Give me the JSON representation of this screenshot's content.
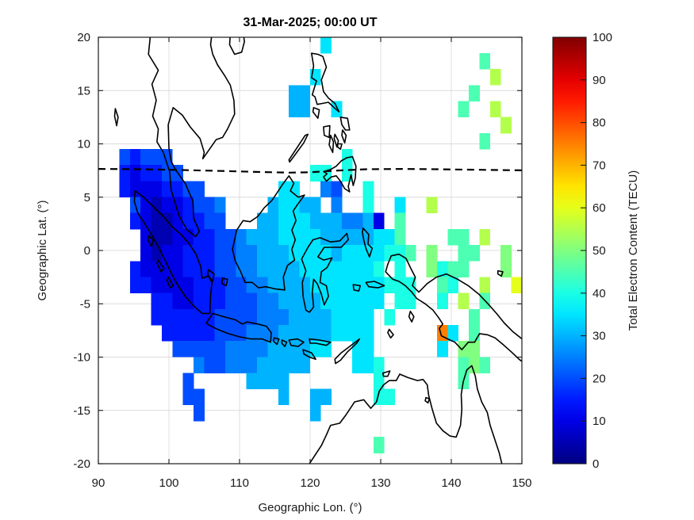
{
  "figure": {
    "title": "31-Mar-2025; 00:00 UT",
    "background": "#ffffff"
  },
  "axes": {
    "xlabel": "Geographic Lon. (°)",
    "ylabel": "Geographic Lat. (°)",
    "xlim": [
      90,
      150
    ],
    "ylim": [
      -20,
      20
    ],
    "xticks": [
      90,
      100,
      110,
      120,
      130,
      140,
      150
    ],
    "yticks": [
      -20,
      -15,
      -10,
      -5,
      0,
      5,
      10,
      15,
      20
    ],
    "grid": true,
    "axis_color": "#1a1a1a",
    "grid_color": "#dcdcdc"
  },
  "colorbar": {
    "label": "Total Electron Content (TECU)",
    "lim": [
      0,
      100
    ],
    "ticks": [
      0,
      10,
      20,
      30,
      40,
      50,
      60,
      70,
      80,
      90,
      100
    ],
    "colormap": "jet"
  },
  "chart_data": {
    "type": "heatmap",
    "title": "31-Mar-2025; 00:00 UT",
    "xlabel": "Geographic Lon. (°)",
    "ylabel": "Geographic Lat. (°)",
    "value_label": "Total Electron Content (TECU)",
    "xlim": [
      90,
      150
    ],
    "ylim": [
      -20,
      20
    ],
    "zlim": [
      0,
      100
    ],
    "cell_size_deg": 1.5,
    "grid_origin": {
      "lon": 90,
      "lat": 20
    },
    "no_data_char": ".",
    "value_map": {
      "a": 5,
      "b": 10,
      "c": 15,
      "d": 20,
      "e": 25,
      "f": 30,
      "g": 35,
      "h": 40,
      "i": 45,
      "j": 50,
      "k": 55,
      "l": 60,
      "m": 65,
      "n": 70,
      "o": 75,
      "p": 80
    },
    "rows": [
      ".....................g..................",
      "....................................i...",
      "....................g................k..",
      "..................ff...............i....",
      "..................ff..g...........i..k..",
      "......................................k.",
      "....................................i...",
      "..dcddd................h................",
      "..cbccdd............hh.h................",
      "..cbbbccdd.......gg..ed..h..............",
      "...dbabbcdde....fggff.e..h..g..k........",
      "...cbaabccdd...ffgggfffeefb.i...........",
      "....baabbccddefffggggfffffggi....ii.k...",
      "....babbcccddeefffggggfgggghhi.j..ii..j.",
      "...cbbbbcccddeeffffgggggggh.h..jhii...j.",
      "...ccbbbbcccddeeffffggggggghhh..ih..k..l",
      ".....ccbbcccdddeeffffgggggg.hh..h.k.i...",
      ".....ccccccddddeeeffffgggg.h.......i....",
      "......cccccdddeeefffffgggg......og.i....",
      ".......dddddeeeeffffgg..gg......g.jj....",
      ".........eddeeefffff....ggh.......iji...",
      "........d.....ffff........h.......i.....",
      "........dd.......f..ff....hh............",
      ".........d..........f...................",
      "........................................",
      "..........................i.............",
      "........................................"
    ],
    "dashed_line": {
      "name": "magnetic-equator",
      "points": [
        [
          90,
          7.65
        ],
        [
          96,
          7.62
        ],
        [
          102,
          7.55
        ],
        [
          108,
          7.45
        ],
        [
          113,
          7.36
        ],
        [
          117,
          7.3
        ],
        [
          120,
          7.34
        ],
        [
          124,
          7.5
        ],
        [
          128,
          7.62
        ],
        [
          133,
          7.65
        ],
        [
          138,
          7.62
        ],
        [
          144,
          7.57
        ],
        [
          150,
          7.52
        ]
      ]
    },
    "max_cell": {
      "lon": 138.75,
      "lat": -7.75,
      "value": 75
    }
  }
}
